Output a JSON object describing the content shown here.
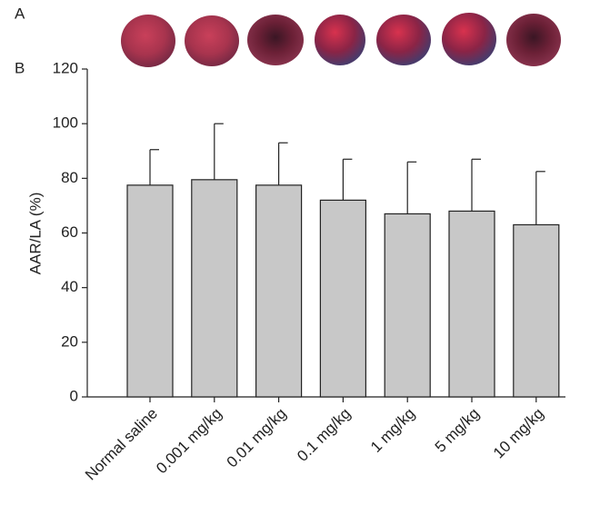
{
  "chart_data": {
    "type": "bar",
    "annotations": [
      "A",
      "B"
    ],
    "y_label": "AAR/LA (%)",
    "categories": [
      "Normal saline",
      "0.001 mg/kg",
      "0.01 mg/kg",
      "0.1 mg/kg",
      "1 mg/kg",
      "5 mg/kg",
      "10 mg/kg"
    ],
    "values": [
      77.5,
      79.5,
      77.5,
      72,
      67,
      68,
      63
    ],
    "errors": [
      13,
      20.5,
      15.5,
      15,
      19,
      19,
      19.5
    ],
    "color": "#c8c8c8",
    "ylim": [
      0,
      120
    ],
    "yticks": [
      0,
      20,
      40,
      60,
      80,
      100,
      120
    ],
    "grid": false
  }
}
